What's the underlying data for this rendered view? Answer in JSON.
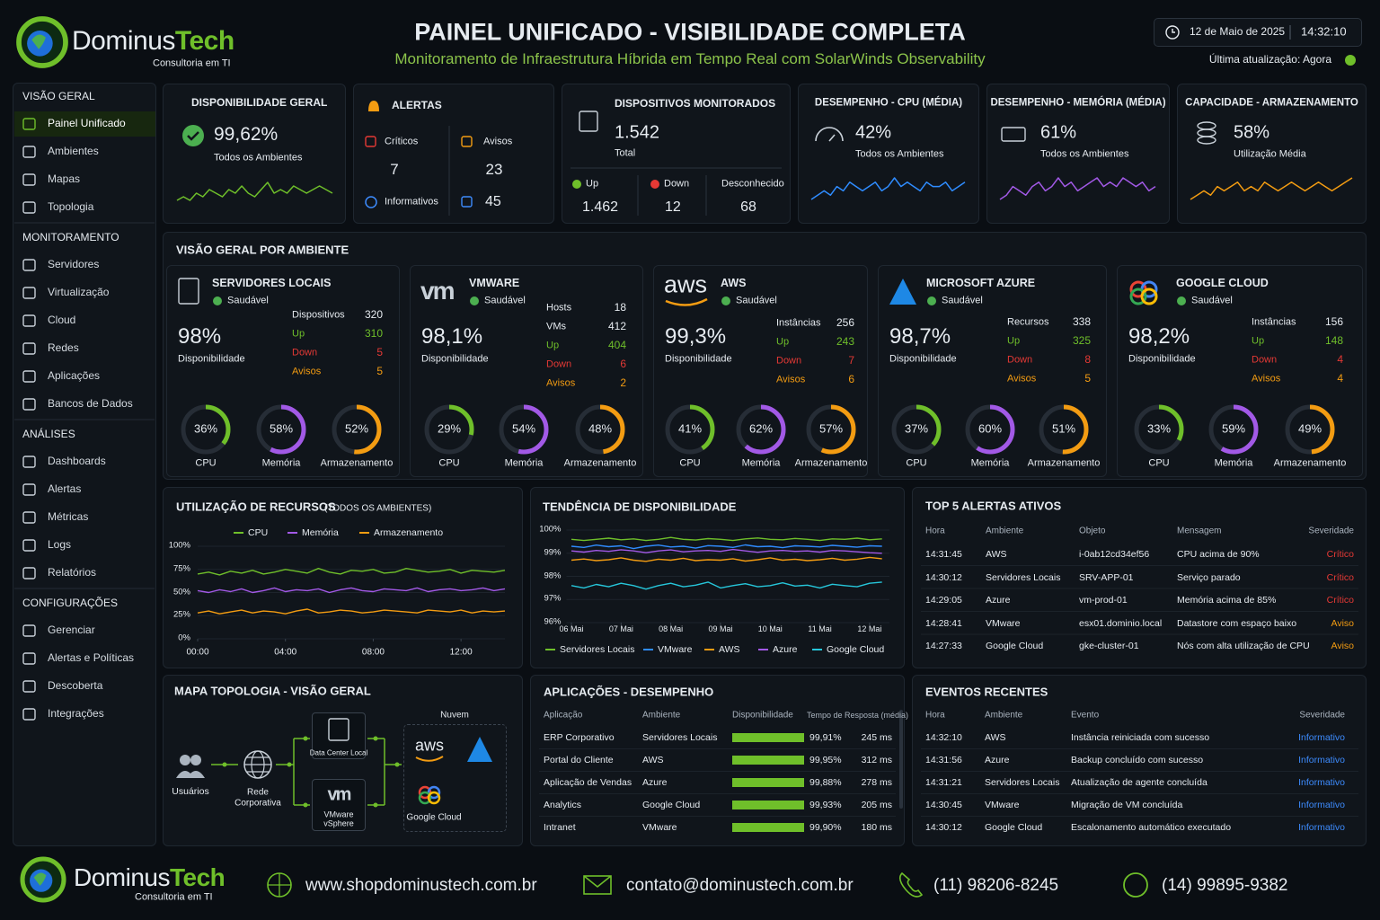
{
  "header": {
    "brand": "Dominus",
    "brand_accent": "Tech",
    "tagline": "Consultoria em TI",
    "title": "PAINEL UNIFICADO - VISIBILIDADE COMPLETA",
    "subtitle": "Monitoramento de Infraestrutura Híbrida em Tempo Real com SolarWinds Observability",
    "date": "12 de Maio de 2025",
    "time": "14:32:10",
    "updated": "Última atualização: Agora"
  },
  "sidebar": {
    "sections": [
      {
        "title": "VISÃO GERAL",
        "items": [
          "Painel Unificado",
          "Ambientes",
          "Mapas",
          "Topologia"
        ]
      },
      {
        "title": "MONITORAMENTO",
        "items": [
          "Servidores",
          "Virtualização",
          "Cloud",
          "Redes",
          "Aplicações",
          "Bancos de Dados"
        ]
      },
      {
        "title": "ANÁLISES",
        "items": [
          "Dashboards",
          "Alertas",
          "Métricas",
          "Logs",
          "Relatórios"
        ]
      },
      {
        "title": "CONFIGURAÇÕES",
        "items": [
          "Gerenciar",
          "Alertas e Políticas",
          "Descoberta",
          "Integrações"
        ]
      }
    ]
  },
  "kpis": {
    "availability": {
      "title": "DISPONIBILIDADE GERAL",
      "value": "99,62%",
      "caption": "Todos os Ambientes",
      "color": "#6fbf2a",
      "trend": [
        3,
        4,
        3,
        5,
        4,
        6,
        5,
        4,
        6,
        5,
        7,
        5,
        4,
        6,
        8,
        5,
        6,
        5,
        7,
        6,
        5,
        6,
        7,
        6,
        5
      ]
    },
    "alerts": {
      "title": "ALERTAS",
      "items": [
        {
          "label": "Críticos",
          "value": "7",
          "color": "#e53935"
        },
        {
          "label": "Avisos",
          "value": "23",
          "color": "#f39c12"
        },
        {
          "label": "Informativos",
          "value": "45",
          "color": "#3d8bfd"
        }
      ]
    },
    "devices": {
      "title": "DISPOSITIVOS MONITORADOS",
      "value": "1.542",
      "caption": "Total",
      "breakdown": [
        {
          "label": "Up",
          "value": "1.462",
          "color": "#6fbf2a"
        },
        {
          "label": "Down",
          "value": "12",
          "color": "#e53935"
        },
        {
          "label": "Desconhecido",
          "value": "68",
          "color": "#aab4bf"
        }
      ]
    },
    "cpu": {
      "title": "DESEMPENHO - CPU (MÉDIA)",
      "value": "42%",
      "caption": "Todos os Ambientes",
      "color": "#2f8cff",
      "trend": [
        3,
        4,
        5,
        4,
        6,
        5,
        7,
        6,
        5,
        6,
        7,
        5,
        6,
        8,
        6,
        7,
        6,
        5,
        7,
        6,
        6,
        7,
        5,
        6,
        7
      ]
    },
    "memory": {
      "title": "DESEMPENHO - MEMÓRIA (MÉDIA)",
      "value": "61%",
      "caption": "Todos os Ambientes",
      "color": "#a259e6",
      "trend": [
        2,
        3,
        5,
        4,
        3,
        5,
        6,
        4,
        5,
        7,
        5,
        6,
        4,
        5,
        6,
        7,
        5,
        6,
        5,
        7,
        6,
        5,
        6,
        4,
        5
      ]
    },
    "storage": {
      "title": "CAPACIDADE - ARMAZENAMENTO",
      "value": "58%",
      "caption": "Utilização Média",
      "color": "#f39c12",
      "trend": [
        3,
        4,
        5,
        4,
        6,
        5,
        6,
        7,
        5,
        6,
        5,
        7,
        6,
        5,
        6,
        7,
        6,
        5,
        6,
        7,
        6,
        5,
        6,
        7,
        8
      ]
    }
  },
  "environments": {
    "title": "VISÃO GERAL POR AMBIENTE",
    "gauge_colors": [
      "#6fbf2a",
      "#a259e6",
      "#f39c12"
    ],
    "items": [
      {
        "name": "SERVIDORES LOCAIS",
        "status": "Saudável",
        "availability": "98%",
        "availability_label": "Disponibilidade",
        "stats": [
          {
            "label": "Dispositivos",
            "value": 320,
            "color": "#e6ebf0"
          },
          {
            "label": "Up",
            "value": 310,
            "color": "#6fbf2a"
          },
          {
            "label": "Down",
            "value": 5,
            "color": "#e53935"
          },
          {
            "label": "Avisos",
            "value": 5,
            "color": "#f39c12"
          }
        ],
        "gauges": {
          "labels": [
            "CPU",
            "Memória",
            "Armazenamento"
          ],
          "values": [
            36,
            58,
            52
          ],
          "value_labels": [
            "36%",
            "58%",
            "52%"
          ]
        }
      },
      {
        "name": "VMWARE",
        "logo": "vm",
        "status": "Saudável",
        "availability": "98,1%",
        "availability_label": "Disponibilidade",
        "stats": [
          {
            "label": "Hosts",
            "value": 18,
            "color": "#e6ebf0"
          },
          {
            "label": "VMs",
            "value": 412,
            "color": "#e6ebf0"
          },
          {
            "label": "Up",
            "value": 404,
            "color": "#6fbf2a"
          },
          {
            "label": "Down",
            "value": 6,
            "color": "#e53935"
          },
          {
            "label": "Avisos",
            "value": 2,
            "color": "#f39c12"
          }
        ],
        "gauges": {
          "labels": [
            "CPU",
            "Memória",
            "Armazenamento"
          ],
          "values": [
            29,
            54,
            48
          ],
          "value_labels": [
            "29%",
            "54%",
            "48%"
          ]
        }
      },
      {
        "name": "AWS",
        "logo": "aws",
        "status": "Saudável",
        "availability": "99,3%",
        "availability_label": "Disponibilidade",
        "stats": [
          {
            "label": "Instâncias",
            "value": 256,
            "color": "#e6ebf0"
          },
          {
            "label": "Up",
            "value": 243,
            "color": "#6fbf2a"
          },
          {
            "label": "Down",
            "value": 7,
            "color": "#e53935"
          },
          {
            "label": "Avisos",
            "value": 6,
            "color": "#f39c12"
          }
        ],
        "gauges": {
          "labels": [
            "CPU",
            "Memória",
            "Armazenamento"
          ],
          "values": [
            41,
            62,
            57
          ],
          "value_labels": [
            "41%",
            "62%",
            "57%"
          ]
        }
      },
      {
        "name": "MICROSOFT AZURE",
        "status": "Saudável",
        "availability": "98,7%",
        "availability_label": "Disponibilidade",
        "stats": [
          {
            "label": "Recursos",
            "value": 338,
            "color": "#e6ebf0"
          },
          {
            "label": "Up",
            "value": 325,
            "color": "#6fbf2a"
          },
          {
            "label": "Down",
            "value": 8,
            "color": "#e53935"
          },
          {
            "label": "Avisos",
            "value": 5,
            "color": "#f39c12"
          }
        ],
        "gauges": {
          "labels": [
            "CPU",
            "Memória",
            "Armazenamento"
          ],
          "values": [
            37,
            60,
            51
          ],
          "value_labels": [
            "37%",
            "60%",
            "51%"
          ]
        }
      },
      {
        "name": "GOOGLE CLOUD",
        "status": "Saudável",
        "availability": "98,2%",
        "availability_label": "Disponibilidade",
        "stats": [
          {
            "label": "Instâncias",
            "value": 156,
            "color": "#e6ebf0"
          },
          {
            "label": "Up",
            "value": 148,
            "color": "#6fbf2a"
          },
          {
            "label": "Down",
            "value": 4,
            "color": "#e53935"
          },
          {
            "label": "Avisos",
            "value": 4,
            "color": "#f39c12"
          }
        ],
        "gauges": {
          "labels": [
            "CPU",
            "Memória",
            "Armazenamento"
          ],
          "values": [
            33,
            59,
            49
          ],
          "value_labels": [
            "33%",
            "59%",
            "49%"
          ]
        }
      }
    ]
  },
  "resources": {
    "type": "line",
    "title": "UTILIZAÇÃO DE RECURSOS",
    "subtitle": "(TODOS OS AMBIENTES)",
    "grid": true,
    "x": [
      0,
      0.5,
      1,
      1.5,
      2,
      2.5,
      3,
      3.5,
      4,
      4.5,
      5,
      5.5,
      6,
      6.5,
      7,
      7.5,
      8,
      8.5,
      9,
      9.5,
      10,
      10.5,
      11,
      11.5,
      12,
      12.5,
      13,
      13.5,
      14
    ],
    "xlim": [
      0,
      14
    ],
    "xticks": [
      {
        "value": 0,
        "label": "00:00"
      },
      {
        "value": 4,
        "label": "04:00"
      },
      {
        "value": 8,
        "label": "08:00"
      },
      {
        "value": 12,
        "label": "12:00"
      }
    ],
    "ylim": [
      0,
      100
    ],
    "yticks": [
      {
        "value": 0,
        "label": "0%"
      },
      {
        "value": 25,
        "label": "25%"
      },
      {
        "value": 50,
        "label": "50%"
      },
      {
        "value": 75,
        "label": "75%"
      },
      {
        "value": 100,
        "label": "100%"
      }
    ],
    "series": [
      {
        "name": "CPU",
        "color": "#6fbf2a",
        "values": [
          70,
          72,
          69,
          73,
          71,
          74,
          70,
          72,
          75,
          73,
          71,
          76,
          72,
          70,
          74,
          73,
          75,
          71,
          72,
          76,
          74,
          72,
          73,
          75,
          71,
          74,
          73,
          72,
          74
        ]
      },
      {
        "name": "Memória",
        "color": "#a259e6",
        "values": [
          52,
          50,
          53,
          51,
          54,
          50,
          52,
          55,
          51,
          53,
          52,
          54,
          50,
          53,
          55,
          52,
          51,
          54,
          53,
          52,
          55,
          51,
          53,
          54,
          52,
          53,
          55,
          52,
          54
        ]
      },
      {
        "name": "Armazenamento",
        "color": "#f39c12",
        "values": [
          28,
          30,
          27,
          29,
          31,
          28,
          30,
          29,
          27,
          30,
          32,
          28,
          29,
          31,
          30,
          28,
          29,
          31,
          30,
          29,
          28,
          31,
          30,
          29,
          31,
          28,
          30,
          29,
          30
        ]
      }
    ]
  },
  "availability_trend": {
    "type": "line",
    "title": "TENDÊNCIA DE DISPONIBILIDADE",
    "grid": true,
    "x": [
      6,
      6.25,
      6.5,
      6.75,
      7,
      7.25,
      7.5,
      7.75,
      8,
      8.25,
      8.5,
      8.75,
      9,
      9.25,
      9.5,
      9.75,
      10,
      10.25,
      10.5,
      10.75,
      11,
      11.25,
      11.5,
      11.75,
      12,
      12.25
    ],
    "xlim": [
      5.9,
      12.4
    ],
    "xticks": [
      {
        "value": 6,
        "label": "06 Mai"
      },
      {
        "value": 7,
        "label": "07 Mai"
      },
      {
        "value": 8,
        "label": "08 Mai"
      },
      {
        "value": 9,
        "label": "09 Mai"
      },
      {
        "value": 10,
        "label": "10 Mai"
      },
      {
        "value": 11,
        "label": "11 Mai"
      },
      {
        "value": 12,
        "label": "12 Mai"
      }
    ],
    "ylim": [
      96,
      100
    ],
    "yticks": [
      {
        "value": 96,
        "label": "96%"
      },
      {
        "value": 97,
        "label": "97%"
      },
      {
        "value": 98,
        "label": "98%"
      },
      {
        "value": 99,
        "label": "99%"
      },
      {
        "value": 100,
        "label": "100%"
      }
    ],
    "series": [
      {
        "name": "Servidores Locais",
        "color": "#6fbf2a",
        "values": [
          99.6,
          99.55,
          99.6,
          99.65,
          99.58,
          99.62,
          99.55,
          99.6,
          99.68,
          99.6,
          99.57,
          99.63,
          99.6,
          99.55,
          99.62,
          99.66,
          99.6,
          99.58,
          99.64,
          99.6,
          99.55,
          99.62,
          99.6,
          99.65,
          99.58,
          99.62
        ]
      },
      {
        "name": "VMware",
        "color": "#2f8cff",
        "values": [
          99.3,
          99.25,
          99.35,
          99.28,
          99.32,
          99.2,
          99.3,
          99.35,
          99.27,
          99.3,
          99.22,
          99.33,
          99.3,
          99.25,
          99.36,
          99.28,
          99.3,
          99.24,
          99.32,
          99.3,
          99.27,
          99.34,
          99.3,
          99.26,
          99.32,
          99.3
        ]
      },
      {
        "name": "AWS",
        "color": "#f39c12",
        "values": [
          98.7,
          98.75,
          98.68,
          98.72,
          98.8,
          98.7,
          98.65,
          98.74,
          98.7,
          98.78,
          98.68,
          98.72,
          98.7,
          98.76,
          98.66,
          98.72,
          98.8,
          98.7,
          98.74,
          98.68,
          98.72,
          98.78,
          98.7,
          98.74,
          98.82,
          98.76
        ]
      },
      {
        "name": "Azure",
        "color": "#a259e6",
        "values": [
          99.1,
          99.05,
          99.12,
          99.08,
          99.15,
          99.1,
          99.02,
          99.1,
          99.14,
          99.06,
          99.1,
          99.12,
          99.08,
          99.16,
          99.1,
          99.04,
          99.1,
          99.12,
          99.08,
          99.1,
          99.05,
          99.12,
          99.1,
          99.06,
          99.02,
          99.0
        ]
      },
      {
        "name": "Google Cloud",
        "color": "#26c6da",
        "values": [
          97.6,
          97.5,
          97.65,
          97.55,
          97.7,
          97.6,
          97.45,
          97.6,
          97.7,
          97.55,
          97.62,
          97.75,
          97.5,
          97.6,
          97.68,
          97.55,
          97.6,
          97.72,
          97.58,
          97.62,
          97.5,
          97.66,
          97.6,
          97.55,
          97.7,
          97.75
        ]
      }
    ]
  },
  "top_alerts": {
    "title": "TOP 5 ALERTAS ATIVOS",
    "columns": [
      "Hora",
      "Ambiente",
      "Objeto",
      "Mensagem",
      "Severidade"
    ],
    "severity_colors": {
      "Crítico": "#e53935",
      "Aviso": "#f39c12"
    },
    "rows": [
      [
        "14:31:45",
        "AWS",
        "i-0ab12cd34ef56",
        "CPU acima de 90%",
        "Crítico"
      ],
      [
        "14:30:12",
        "Servidores Locais",
        "SRV-APP-01",
        "Serviço parado",
        "Crítico"
      ],
      [
        "14:29:05",
        "Azure",
        "vm-prod-01",
        "Memória acima de 85%",
        "Crítico"
      ],
      [
        "14:28:41",
        "VMware",
        "esx01.dominio.local",
        "Datastore com espaço baixo",
        "Aviso"
      ],
      [
        "14:27:33",
        "Google Cloud",
        "gke-cluster-01",
        "Nós com alta utilização de CPU",
        "Aviso"
      ]
    ]
  },
  "topology": {
    "title": "MAPA TOPOLOGIA - VISÃO GERAL",
    "cloud_label": "Nuvem",
    "users": "Usuários",
    "network": "Rede Corporativa",
    "datacenter": "Data Center Local",
    "vmware_logo": "vm",
    "vmware": "VMware vSphere",
    "aws_logo": "aws",
    "gcloud": "Google Cloud"
  },
  "apps": {
    "title": "APLICAÇÕES - DESEMPENHO",
    "columns": [
      "Aplicação",
      "Ambiente",
      "Disponibilidade",
      "Tempo de Resposta (média)"
    ],
    "bar_color": "#6fbf2a",
    "rows": [
      {
        "name": "ERP Corporativo",
        "env": "Servidores Locais",
        "availability": 99.91,
        "availability_label": "99,91%",
        "response": "245 ms"
      },
      {
        "name": "Portal do Cliente",
        "env": "AWS",
        "availability": 99.95,
        "availability_label": "99,95%",
        "response": "312 ms"
      },
      {
        "name": "Aplicação de Vendas",
        "env": "Azure",
        "availability": 99.88,
        "availability_label": "99,88%",
        "response": "278 ms"
      },
      {
        "name": "Analytics",
        "env": "Google Cloud",
        "availability": 99.93,
        "availability_label": "99,93%",
        "response": "205 ms"
      },
      {
        "name": "Intranet",
        "env": "VMware",
        "availability": 99.9,
        "availability_label": "99,90%",
        "response": "180 ms"
      }
    ]
  },
  "events": {
    "title": "EVENTOS RECENTES",
    "columns": [
      "Hora",
      "Ambiente",
      "Evento",
      "Severidade"
    ],
    "severity_color": "#3d8bfd",
    "rows": [
      [
        "14:32:10",
        "AWS",
        "Instância reiniciada com sucesso",
        "Informativo"
      ],
      [
        "14:31:56",
        "Azure",
        "Backup concluído com sucesso",
        "Informativo"
      ],
      [
        "14:31:21",
        "Servidores Locais",
        "Atualização de agente concluída",
        "Informativo"
      ],
      [
        "14:30:45",
        "VMware",
        "Migração de VM concluída",
        "Informativo"
      ],
      [
        "14:30:12",
        "Google Cloud",
        "Escalonamento automático executado",
        "Informativo"
      ]
    ]
  },
  "footer": {
    "brand": "Dominus",
    "brand_accent": "Tech",
    "tagline": "Consultoria em TI",
    "website": "www.shopdominustech.com.br",
    "email": "contato@dominustech.com.br",
    "phone": "(11) 98206-8245",
    "whatsapp": "(14) 99895-9382"
  }
}
